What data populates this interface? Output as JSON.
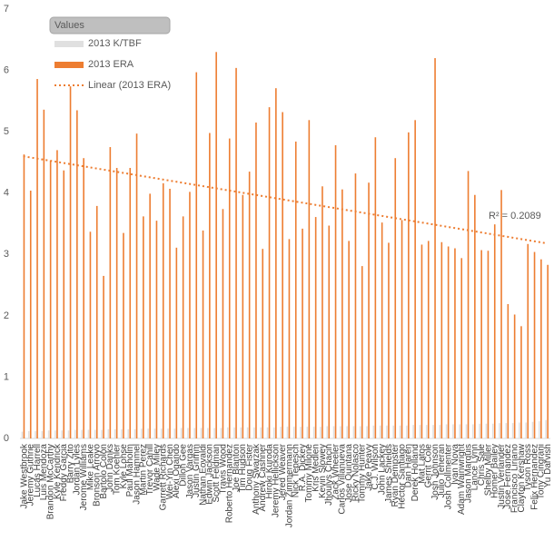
{
  "chart_data": {
    "type": "bar",
    "legend_title": "Values",
    "categories": [
      "Jake Westbrook",
      "Jeremy Guthrie",
      "Lucas Harrell",
      "Luis Mendoza",
      "Brandon McCarthy",
      "Kyle Kendrick",
      "Freddy Garcia",
      "Barry Zito",
      "Jordan Lyles",
      "Jerome Williams",
      "Mike Leake",
      "Bronson Arroyo",
      "Bartolo Colon",
      "John Danks",
      "Tom Koehler",
      "Kyle Lohse",
      "Paul Maholm",
      "Jason Hammel",
      "Martin Perez",
      "Trevor Cahill",
      "Wade Miley",
      "Garrett Richards",
      "Wei-Yin Chen",
      "Alexi Ogando",
      "Dillon Gee",
      "Jason Vargas",
      "Justin Grimm",
      "Nathan Eovaldi",
      "Edwin Jackson",
      "Scott Feldman",
      "Travis Wood",
      "Roberto Hernandez",
      "Joe Blanton",
      "Tim Hudson",
      "Doug Fister",
      "Anthony Swarzak",
      "Andrew Cashner",
      "Hiroki Kuroda",
      "Jeremy Hellickson",
      "Jered Weaver",
      "Jordan Zimmermann",
      "Nick Tepesch",
      "R.A. Dickey",
      "Tommy Milone",
      "Kris Medlen",
      "Kevin Slowey",
      "Jhoulys Chacin",
      "Zack Wheeler",
      "Carlos Villanueva",
      "Jose Quintana",
      "Ricky Nolasco",
      "Tommy Hunter",
      "Jake Peavy",
      "C.J. Wilson",
      "John Lackey",
      "James Shields",
      "Ryan Dempster",
      "Hector Santiago",
      "Dan Haren",
      "Derek Holland",
      "Mat Latos",
      "Gerrit Cole",
      "Josh Johnson",
      "Julio Teheran",
      "Josh Collmenter",
      "Ivan Nova",
      "Adam Wainwright",
      "Jason Marquis",
      "Lance Lynn",
      "Chris Sale",
      "Shelby Miller",
      "Homer Bailey",
      "Justin Verlander",
      "Jose Fernandez",
      "Francisco Liriano",
      "Clayton Kershaw",
      "Tyson Ross",
      "Felix Hernandez",
      "Tony Cingrani",
      "Yu Darvish"
    ],
    "series": [
      {
        "name": "2013 K/TBF",
        "color": "#e0e0e0",
        "values": [
          0.11,
          0.12,
          0.12,
          0.12,
          0.13,
          0.13,
          0.13,
          0.13,
          0.14,
          0.14,
          0.14,
          0.14,
          0.14,
          0.15,
          0.15,
          0.15,
          0.15,
          0.15,
          0.16,
          0.16,
          0.16,
          0.16,
          0.16,
          0.16,
          0.17,
          0.17,
          0.17,
          0.17,
          0.17,
          0.17,
          0.17,
          0.18,
          0.18,
          0.18,
          0.18,
          0.18,
          0.18,
          0.18,
          0.18,
          0.19,
          0.19,
          0.19,
          0.19,
          0.19,
          0.19,
          0.19,
          0.2,
          0.2,
          0.2,
          0.2,
          0.2,
          0.2,
          0.2,
          0.21,
          0.21,
          0.21,
          0.21,
          0.21,
          0.21,
          0.22,
          0.22,
          0.22,
          0.22,
          0.22,
          0.23,
          0.23,
          0.23,
          0.23,
          0.23,
          0.24,
          0.24,
          0.24,
          0.25,
          0.25,
          0.25,
          0.26,
          0.26,
          0.27,
          0.28,
          0.3
        ]
      },
      {
        "name": "2013 ERA",
        "color": "#ed7d31",
        "values": [
          4.63,
          4.04,
          5.86,
          5.36,
          4.53,
          4.7,
          4.37,
          5.74,
          5.35,
          4.57,
          3.37,
          3.79,
          2.65,
          4.75,
          4.41,
          3.35,
          4.41,
          4.97,
          3.62,
          3.99,
          3.55,
          4.16,
          4.07,
          3.11,
          3.62,
          4.02,
          5.97,
          3.39,
          4.98,
          6.3,
          3.74,
          4.89,
          6.04,
          3.97,
          4.35,
          5.15,
          3.09,
          5.4,
          5.71,
          5.32,
          3.25,
          4.84,
          3.42,
          5.19,
          3.61,
          4.11,
          3.47,
          4.78,
          4.06,
          3.22,
          4.32,
          2.81,
          4.17,
          4.91,
          3.52,
          3.19,
          4.57,
          3.56,
          4.99,
          5.19,
          3.16,
          3.22,
          6.2,
          3.2,
          3.13,
          3.1,
          2.94,
          4.36,
          3.97,
          3.07,
          3.06,
          3.49,
          4.05,
          2.19,
          2.02,
          1.83,
          3.17,
          3.04,
          2.92,
          2.83
        ]
      }
    ],
    "trendline": {
      "name": "Linear (2013 ERA)",
      "color": "#ed7d31",
      "values": [
        4.6,
        3.18
      ]
    },
    "annotation": "R² = 0.2089",
    "ylim": [
      0,
      7
    ],
    "yticks": [
      0,
      1,
      2,
      3,
      4,
      5,
      6,
      7
    ],
    "grid": false
  }
}
